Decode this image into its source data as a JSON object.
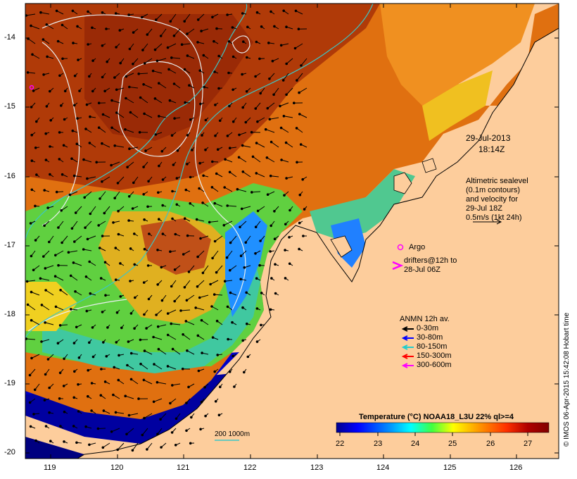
{
  "map": {
    "colors": {
      "land": "#fdcd9c",
      "contour": "#e9eeef",
      "isobath": "#3cc6c6",
      "coast": "#000000",
      "grid": "#000000"
    },
    "x_ticks": [
      "119",
      "120",
      "121",
      "122",
      "123",
      "124",
      "125",
      "126"
    ],
    "y_ticks": [
      "-14",
      "-15",
      "-16",
      "-17",
      "-18",
      "-19",
      "-20"
    ],
    "date": "29-Jul-2013",
    "time": "18:14Z",
    "sealevel_note": [
      "Altimetric sealevel",
      "(0.1m contours)",
      "and velocity for",
      "29-Jul 18Z",
      "0.5m/s (1kt 24h)"
    ],
    "argo_label": "Argo",
    "drifters_label": [
      "drifters@12h to",
      "28-Jul 06Z"
    ],
    "anmn": {
      "title": "ANMN 12h av.",
      "items": [
        {
          "label": "0-30m",
          "color": "#000000"
        },
        {
          "label": "30-80m",
          "color": "#0000ff"
        },
        {
          "label": "80-150m",
          "color": "#22cccc"
        },
        {
          "label": "150-300m",
          "color": "#ff0000"
        },
        {
          "label": "300-600m",
          "color": "#ff00ff"
        }
      ]
    },
    "isobath_label": "200  1000m",
    "colorbar": {
      "title": "Temperature (°C) NOAA18_L3U 22% ql>=4",
      "ticks": [
        "22",
        "23",
        "24",
        "25",
        "26",
        "27"
      ],
      "gradient": [
        "#00008f",
        "#0000ff",
        "#0090ff",
        "#00ffff",
        "#40ff40",
        "#ffff00",
        "#ff9000",
        "#ff3000",
        "#b00000",
        "#800000"
      ]
    },
    "credit": "© IMOS 06-Apr-2015 15:42:08 Hobart time"
  }
}
